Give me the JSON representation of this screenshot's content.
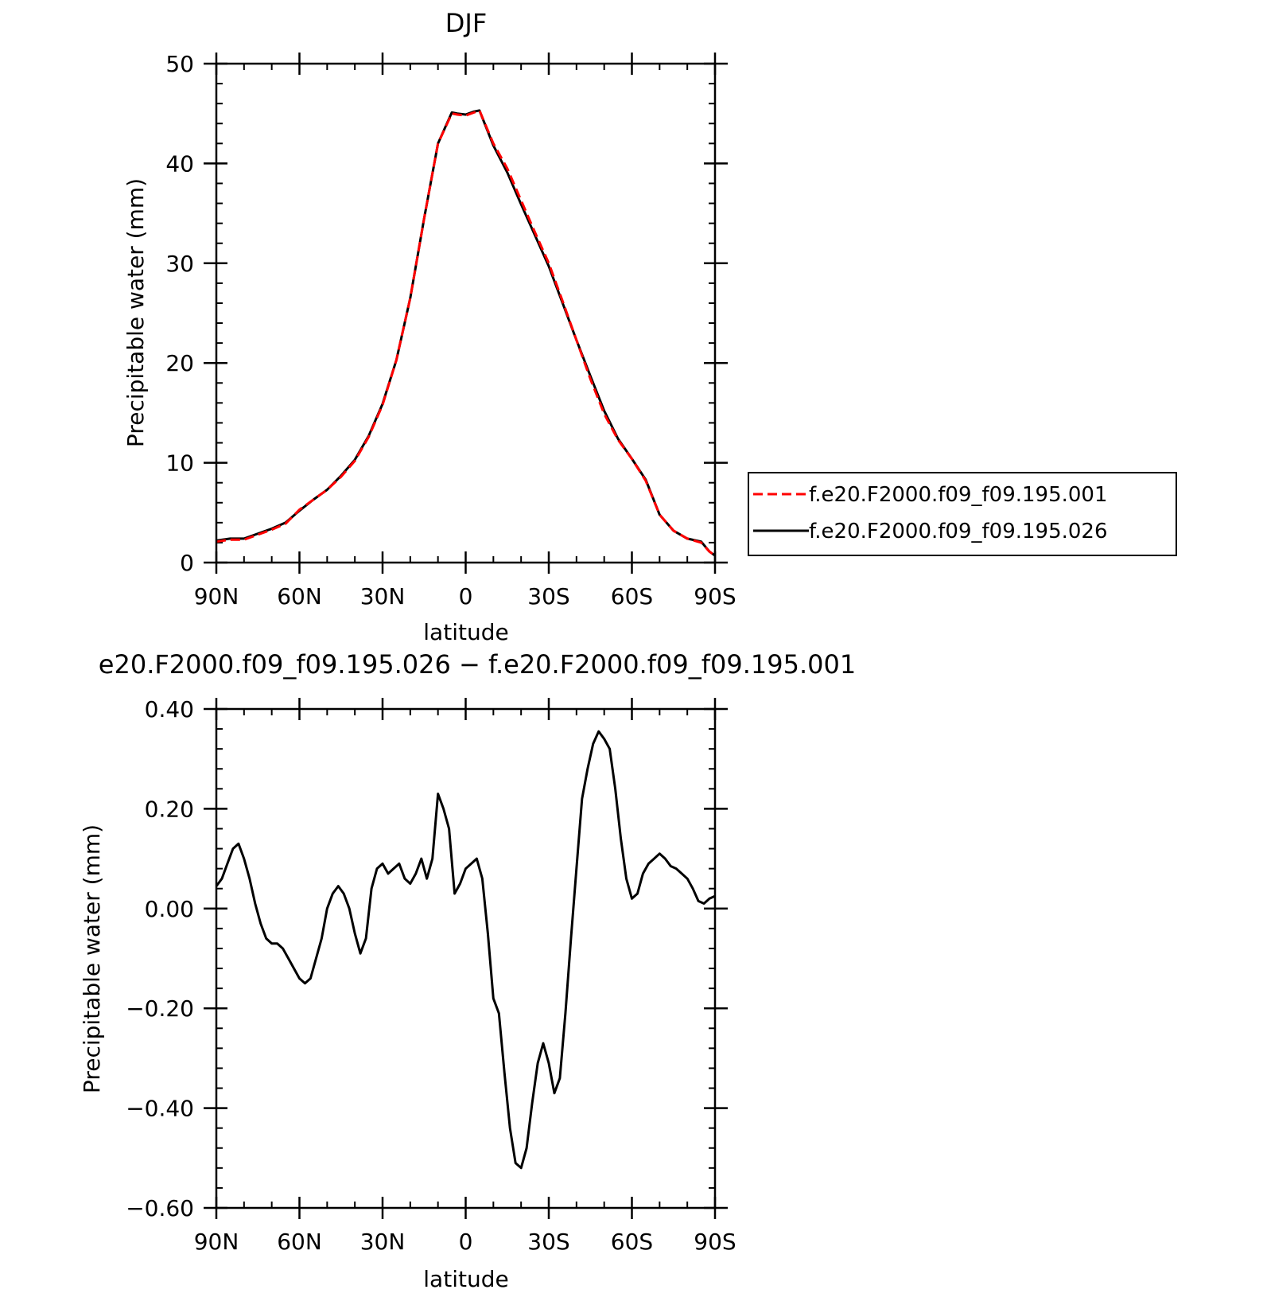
{
  "chart_data": [
    {
      "type": "line",
      "title": "DJF",
      "xlabel": "latitude",
      "ylabel": "Precipitable water (mm)",
      "xlim": [
        90,
        -90
      ],
      "ylim": [
        0,
        50
      ],
      "x_ticks": [
        90,
        60,
        30,
        0,
        -30,
        -60,
        -90
      ],
      "x_tick_labels": [
        "90N",
        "60N",
        "30N",
        "0",
        "30S",
        "60S",
        "90S"
      ],
      "y_ticks": [
        0,
        10,
        20,
        30,
        40,
        50
      ],
      "y_tick_labels": [
        "0",
        "10",
        "20",
        "30",
        "40",
        "50"
      ],
      "legend": "right",
      "x": [
        90,
        85,
        80,
        75,
        70,
        65,
        60,
        55,
        50,
        45,
        40,
        35,
        30,
        25,
        20,
        15,
        10,
        5,
        3,
        0,
        -3,
        -5,
        -10,
        -15,
        -20,
        -25,
        -30,
        -35,
        -40,
        -45,
        -50,
        -55,
        -60,
        -65,
        -70,
        -75,
        -80,
        -85,
        -88,
        -90
      ],
      "series": [
        {
          "name": "f.e20.F2000.f09_f09.195.001",
          "color": "#ff0000",
          "dash": "dashed",
          "values": [
            2.1,
            2.3,
            2.3,
            2.8,
            3.3,
            3.9,
            5.3,
            6.3,
            7.3,
            8.6,
            10.2,
            12.6,
            15.8,
            20.3,
            26.5,
            34.5,
            42.0,
            45.0,
            44.9,
            44.8,
            45.1,
            45.3,
            42.0,
            39.5,
            36.3,
            33.1,
            30.0,
            26.2,
            22.3,
            18.4,
            14.9,
            12.3,
            10.4,
            8.2,
            4.8,
            3.2,
            2.4,
            2.0,
            1.1,
            0.7
          ]
        },
        {
          "name": "f.e20.F2000.f09_f09.195.026",
          "color": "#000000",
          "dash": "solid",
          "values": [
            2.2,
            2.4,
            2.4,
            2.9,
            3.4,
            4.0,
            5.2,
            6.3,
            7.3,
            8.7,
            10.3,
            12.7,
            15.9,
            20.3,
            26.5,
            34.5,
            42.0,
            45.1,
            45.0,
            44.9,
            45.2,
            45.3,
            41.8,
            39.1,
            35.9,
            32.8,
            29.7,
            26.0,
            22.3,
            18.7,
            15.2,
            12.4,
            10.4,
            8.3,
            4.8,
            3.2,
            2.4,
            2.1,
            1.1,
            0.7
          ]
        }
      ]
    },
    {
      "type": "line",
      "title": "e20.F2000.f09_f09.195.026 − f.e20.F2000.f09_f09.195.001",
      "xlabel": "latitude",
      "ylabel": "Precipitable water (mm)",
      "xlim": [
        90,
        -90
      ],
      "ylim": [
        -0.6,
        0.4
      ],
      "x_ticks": [
        90,
        60,
        30,
        0,
        -30,
        -60,
        -90
      ],
      "x_tick_labels": [
        "90N",
        "60N",
        "30N",
        "0",
        "30S",
        "60S",
        "90S"
      ],
      "y_ticks": [
        -0.6,
        -0.4,
        -0.2,
        0.0,
        0.2,
        0.4
      ],
      "y_tick_labels": [
        "−0.60",
        "−0.40",
        "−0.20",
        "0.00",
        "0.20",
        "0.40"
      ],
      "x": [
        90,
        88,
        86,
        84,
        82,
        80,
        78,
        76,
        74,
        72,
        70,
        68,
        66,
        64,
        62,
        60,
        58,
        56,
        54,
        52,
        50,
        48,
        46,
        44,
        42,
        40,
        38,
        36,
        34,
        32,
        30,
        28,
        26,
        24,
        22,
        20,
        18,
        16,
        14,
        12,
        10,
        8,
        6,
        4,
        2,
        0,
        -2,
        -4,
        -6,
        -8,
        -10,
        -12,
        -14,
        -16,
        -18,
        -20,
        -22,
        -24,
        -26,
        -28,
        -30,
        -32,
        -34,
        -36,
        -38,
        -40,
        -42,
        -44,
        -46,
        -48,
        -50,
        -52,
        -54,
        -56,
        -58,
        -60,
        -62,
        -64,
        -66,
        -68,
        -70,
        -72,
        -74,
        -76,
        -78,
        -80,
        -82,
        -84,
        -86,
        -88,
        -90
      ],
      "series": [
        {
          "name": "",
          "color": "#000000",
          "dash": "solid",
          "values": [
            0.045,
            0.06,
            0.09,
            0.12,
            0.13,
            0.1,
            0.06,
            0.01,
            -0.03,
            -0.06,
            -0.07,
            -0.07,
            -0.08,
            -0.1,
            -0.12,
            -0.14,
            -0.15,
            -0.14,
            -0.1,
            -0.06,
            0.0,
            0.03,
            0.045,
            0.03,
            0.0,
            -0.05,
            -0.09,
            -0.06,
            0.04,
            0.08,
            0.09,
            0.07,
            0.08,
            0.09,
            0.06,
            0.05,
            0.07,
            0.1,
            0.06,
            0.1,
            0.23,
            0.2,
            0.16,
            0.03,
            0.05,
            0.08,
            0.09,
            0.1,
            0.06,
            -0.05,
            -0.18,
            -0.21,
            -0.33,
            -0.44,
            -0.51,
            -0.52,
            -0.48,
            -0.39,
            -0.31,
            -0.27,
            -0.31,
            -0.37,
            -0.34,
            -0.21,
            -0.06,
            0.08,
            0.22,
            0.28,
            0.33,
            0.355,
            0.34,
            0.32,
            0.24,
            0.14,
            0.06,
            0.02,
            0.03,
            0.07,
            0.09,
            0.1,
            0.11,
            0.1,
            0.085,
            0.08,
            0.07,
            0.06,
            0.04,
            0.015,
            0.01,
            0.02,
            0.025
          ]
        }
      ]
    }
  ]
}
